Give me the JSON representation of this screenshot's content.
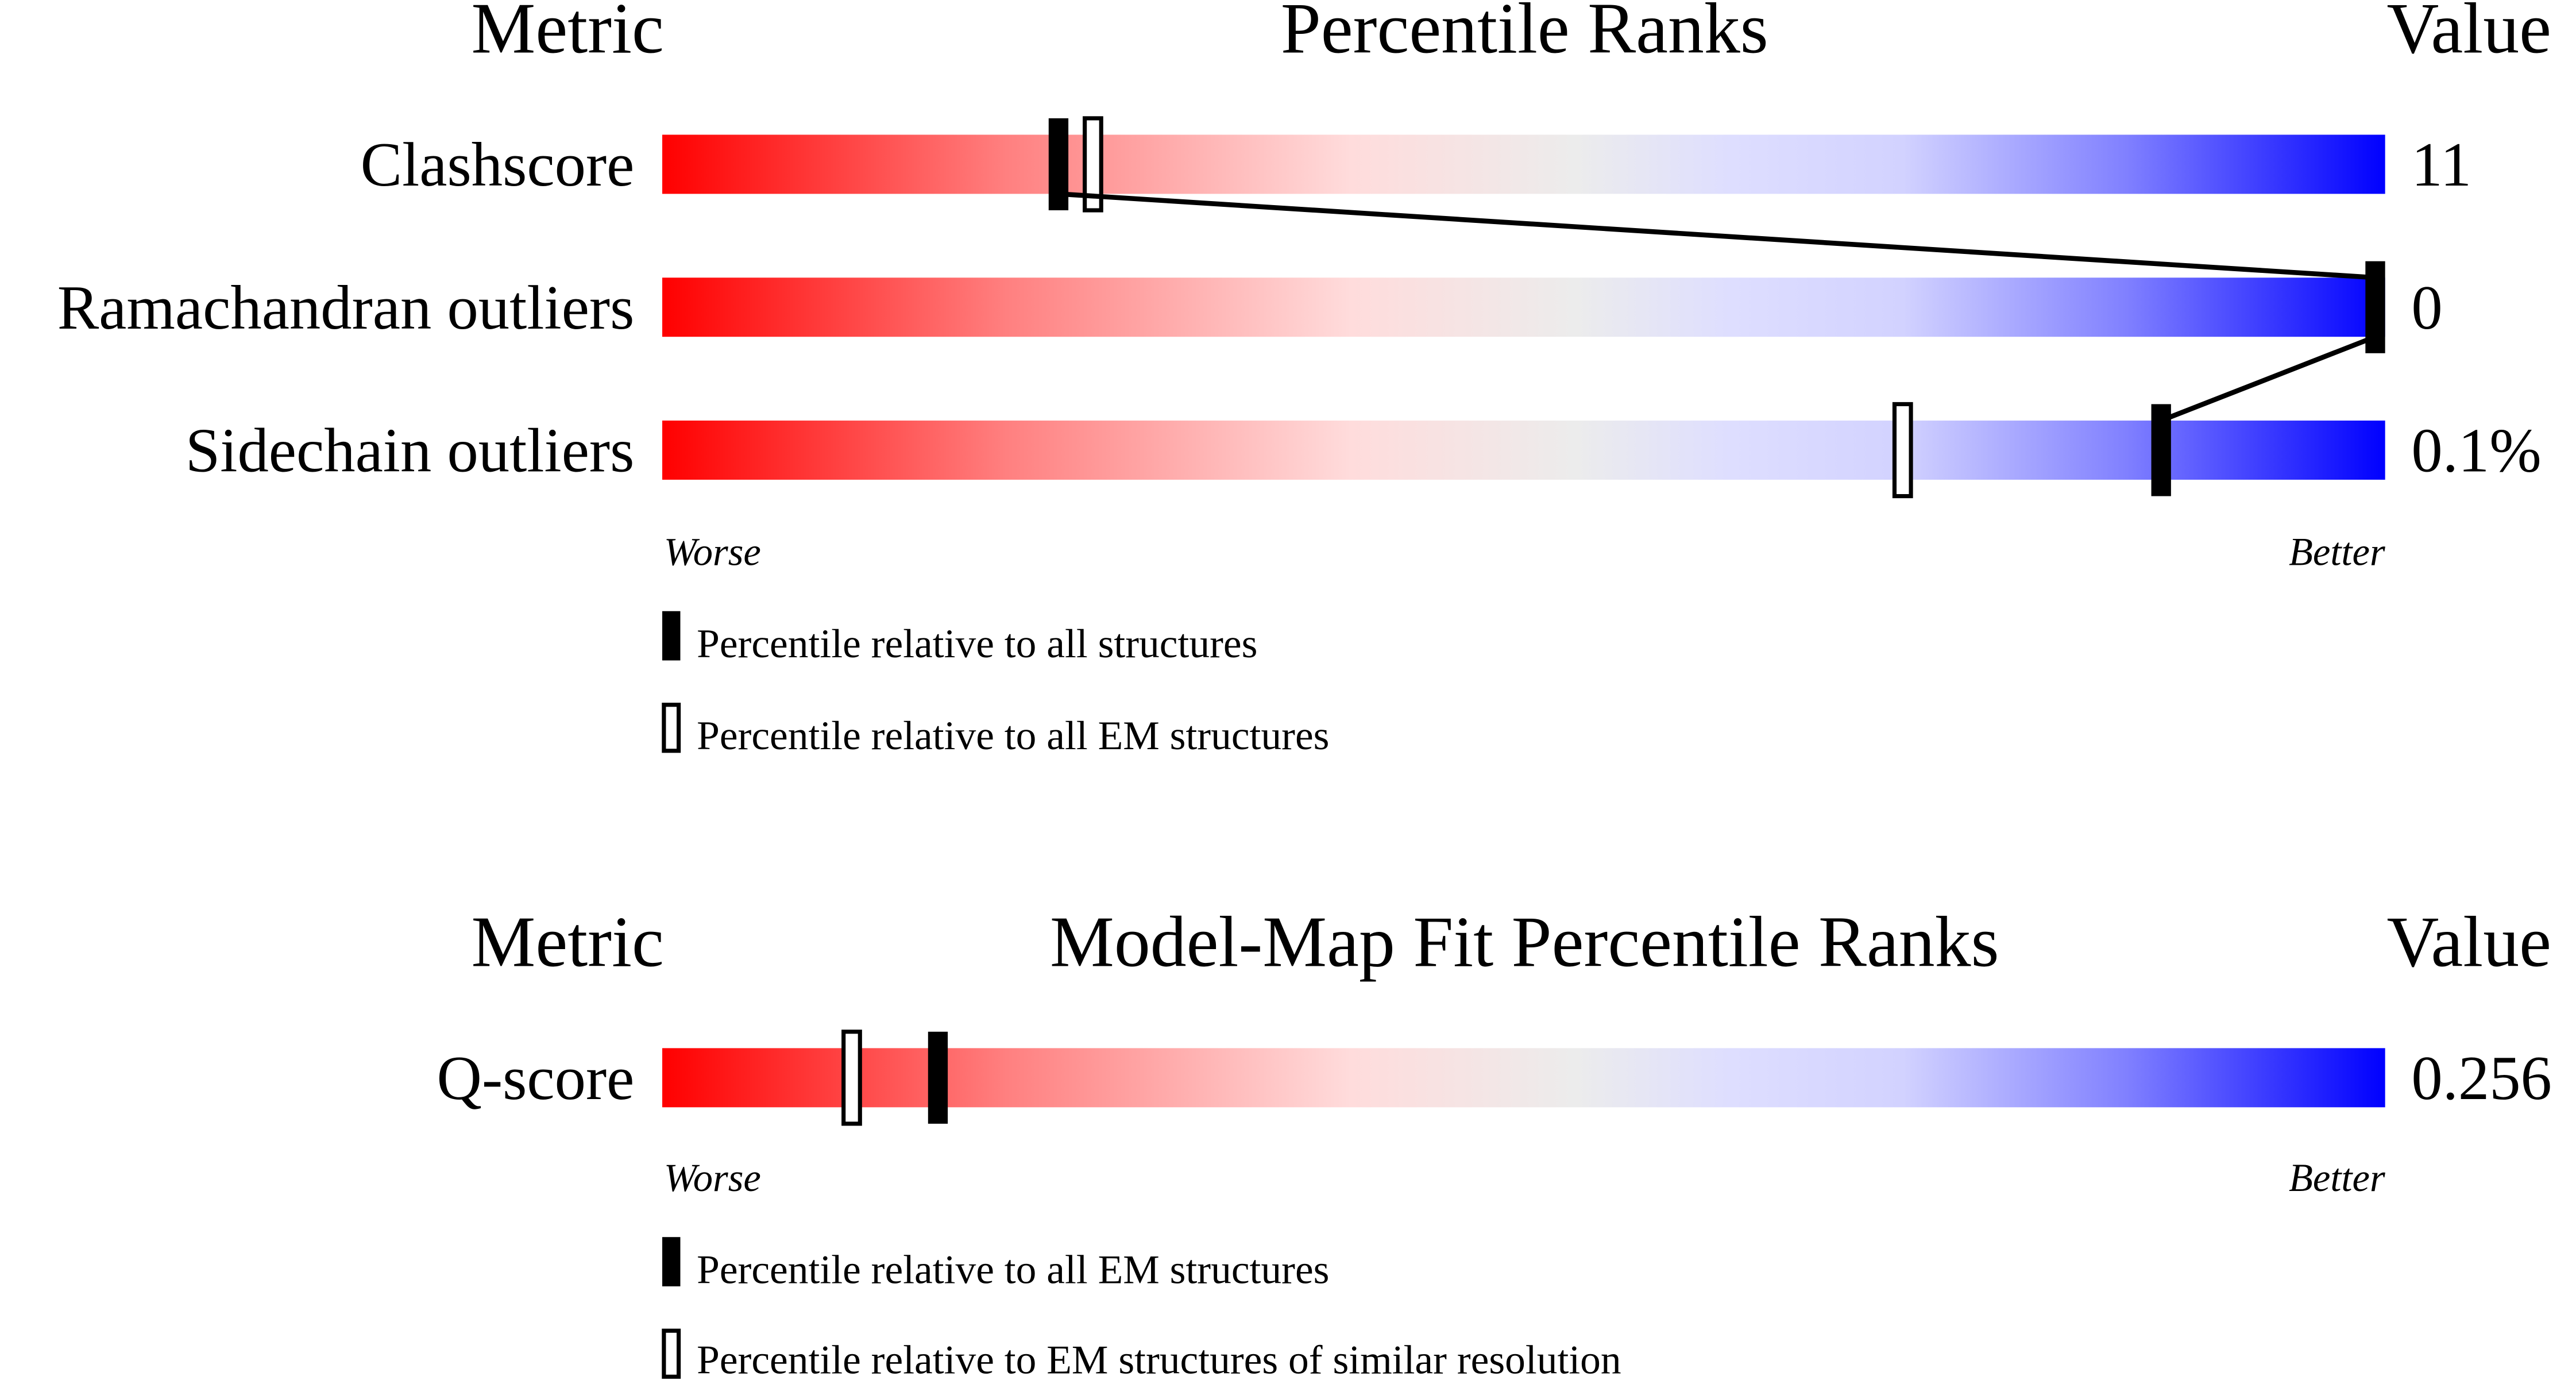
{
  "chart_data": [
    {
      "type": "bar",
      "title": "Percentile Ranks",
      "metric_header": "Metric",
      "value_header": "Value",
      "worse_label": "Worse",
      "better_label": "Better",
      "xlim": [
        0,
        100
      ],
      "rows": [
        {
          "metric": "Clashscore",
          "value": "11",
          "percentile_all": 23,
          "percentile_em": 25
        },
        {
          "metric": "Ramachandran outliers",
          "value": "0",
          "percentile_all": 100,
          "percentile_em": 100
        },
        {
          "metric": "Sidechain outliers",
          "value": "0.1%",
          "percentile_all": 87,
          "percentile_em": 72
        }
      ],
      "legend": {
        "filled": "Percentile relative to all structures",
        "open": "Percentile relative to all EM structures"
      }
    },
    {
      "type": "bar",
      "title": "Model-Map Fit Percentile Ranks",
      "metric_header": "Metric",
      "value_header": "Value",
      "worse_label": "Worse",
      "better_label": "Better",
      "xlim": [
        0,
        100
      ],
      "rows": [
        {
          "metric": "Q-score",
          "value": "0.256",
          "percentile_all": 16,
          "percentile_em": 11
        }
      ],
      "legend": {
        "filled": "Percentile relative to all EM structures",
        "open": "Percentile relative to EM structures of similar resolution"
      }
    }
  ],
  "colors": {
    "worse": "#ff0000",
    "better": "#0000ff",
    "marker": "#000000"
  }
}
